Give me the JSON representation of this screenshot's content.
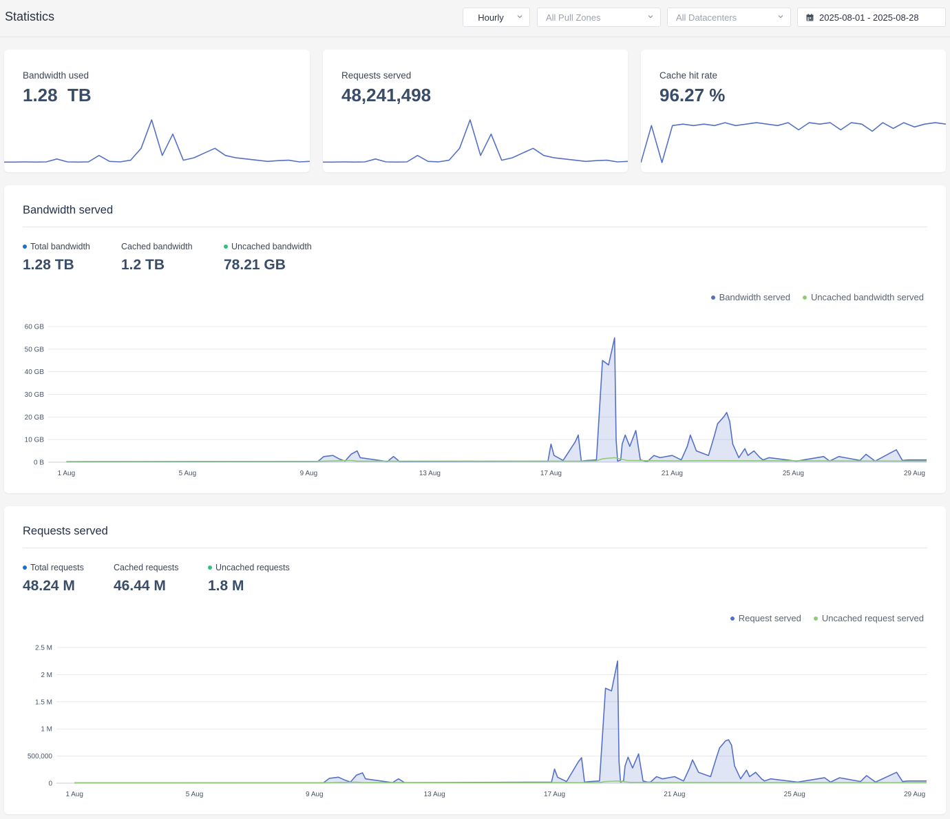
{
  "header": {
    "title": "Statistics",
    "granularity": "Hourly",
    "pull_zones": "All Pull Zones",
    "datacenters": "All Datacenters",
    "date_range": "2025-08-01 - 2025-08-28"
  },
  "kpis": [
    {
      "label": "Bandwidth used",
      "value": "1.28  TB"
    },
    {
      "label": "Requests served",
      "value": "48,241,498"
    },
    {
      "label": "Cache hit rate",
      "value": "96.27 %"
    }
  ],
  "bandwidth": {
    "title": "Bandwidth served",
    "stats": [
      {
        "label": "Total bandwidth",
        "value": "1.28 TB",
        "dot": "#1f6fc5"
      },
      {
        "label": "Cached bandwidth",
        "value": "1.2 TB",
        "dot": ""
      },
      {
        "label": "Uncached bandwidth",
        "value": "78.21 GB",
        "dot": "#2ec27e"
      }
    ],
    "legend": [
      {
        "label": "Bandwidth served",
        "color": "#5470c6"
      },
      {
        "label": "Uncached bandwidth served",
        "color": "#91cc75"
      }
    ]
  },
  "requests": {
    "title": "Requests served",
    "stats": [
      {
        "label": "Total requests",
        "value": "48.24 M",
        "dot": "#1f6fc5"
      },
      {
        "label": "Cached requests",
        "value": "46.44 M",
        "dot": ""
      },
      {
        "label": "Uncached requests",
        "value": "1.8 M",
        "dot": "#2ec27e"
      }
    ],
    "legend": [
      {
        "label": "Request served",
        "color": "#5470c6"
      },
      {
        "label": "Uncached request served",
        "color": "#91cc75"
      }
    ]
  },
  "colors": {
    "series_main": "#5470c6",
    "series_uncached": "#91cc75",
    "fill_main": "rgba(84,112,198,0.18)"
  },
  "chart_data": [
    {
      "type": "area",
      "title": "Bandwidth served",
      "x_start": "2025-08-01",
      "x_unit": "day",
      "x_ticks": [
        "1 Aug",
        "5 Aug",
        "9 Aug",
        "13 Aug",
        "17 Aug",
        "21 Aug",
        "25 Aug",
        "29 Aug"
      ],
      "y_ticks": [
        "0 B",
        "10 GB",
        "20 GB",
        "30 GB",
        "40 GB",
        "50 GB",
        "60 GB"
      ],
      "ylim": [
        0,
        60
      ],
      "y_unit": "GB",
      "series": [
        {
          "name": "Bandwidth served",
          "x": [
            0,
            8.3,
            8.5,
            8.8,
            9.0,
            9.2,
            9.4,
            9.6,
            9.7,
            10.6,
            10.8,
            11.0,
            15.9,
            16.0,
            16.1,
            16.4,
            16.8,
            16.9,
            17.0,
            17.2,
            17.5,
            17.7,
            17.9,
            18.1,
            18.15,
            18.2,
            18.3,
            18.35,
            18.45,
            18.6,
            18.8,
            18.95,
            19.1,
            19.2,
            19.4,
            19.6,
            20.0,
            20.3,
            20.5,
            20.6,
            20.8,
            21.2,
            21.4,
            21.5,
            21.7,
            21.8,
            21.9,
            22.0,
            22.2,
            22.4,
            22.5,
            22.7,
            22.9,
            23.0,
            23.2,
            23.5,
            24.1,
            25.0,
            25.2,
            25.5,
            25.7,
            26.2,
            26.4,
            26.7,
            27.4,
            27.6,
            27.8,
            28.4
          ],
          "values": [
            0.2,
            0.3,
            2.5,
            3.0,
            1.5,
            0.5,
            3.5,
            5.0,
            2.0,
            0.3,
            2.5,
            0.3,
            0.5,
            8.0,
            3.0,
            0.8,
            9.0,
            12.0,
            0.5,
            0.8,
            1.0,
            45.0,
            43.0,
            55.0,
            10.0,
            0.5,
            1.0,
            8.0,
            12.0,
            7.0,
            14.0,
            1.0,
            0.5,
            0.5,
            3.0,
            2.0,
            3.0,
            1.0,
            7.0,
            12.0,
            5.0,
            3.0,
            12.0,
            17.0,
            20.0,
            22.0,
            18.0,
            8.0,
            2.0,
            6.0,
            3.0,
            5.0,
            2.0,
            1.0,
            2.0,
            1.5,
            0.5,
            2.5,
            0.5,
            2.5,
            2.0,
            0.8,
            3.5,
            0.5,
            5.5,
            0.8,
            1.0,
            1.0
          ]
        },
        {
          "name": "Uncached bandwidth served",
          "x": [
            0,
            8.3,
            9.4,
            9.6,
            17.2,
            17.5,
            17.7,
            18.1,
            18.5,
            20.0,
            21.0,
            28.4
          ],
          "values": [
            0.3,
            0.4,
            0.8,
            0.5,
            0.5,
            0.6,
            1.5,
            2.0,
            0.8,
            0.6,
            0.7,
            0.5
          ]
        }
      ]
    },
    {
      "type": "area",
      "title": "Requests served",
      "x_start": "2025-08-01",
      "x_unit": "day",
      "x_ticks": [
        "1 Aug",
        "5 Aug",
        "9 Aug",
        "13 Aug",
        "17 Aug",
        "21 Aug",
        "25 Aug",
        "29 Aug"
      ],
      "y_ticks": [
        "0",
        "500,000",
        "1 M",
        "1.5 M",
        "2 M",
        "2.5 M"
      ],
      "ylim": [
        0,
        2500000
      ],
      "series": [
        {
          "name": "Request served",
          "x": [
            0,
            8.3,
            8.5,
            8.8,
            9.0,
            9.2,
            9.4,
            9.6,
            9.7,
            10.6,
            10.8,
            11.0,
            15.9,
            16.0,
            16.1,
            16.4,
            16.8,
            16.9,
            17.0,
            17.2,
            17.5,
            17.7,
            17.9,
            18.1,
            18.15,
            18.2,
            18.3,
            18.35,
            18.45,
            18.6,
            18.8,
            18.95,
            19.1,
            19.2,
            19.4,
            19.6,
            20.0,
            20.3,
            20.5,
            20.6,
            20.8,
            21.2,
            21.4,
            21.5,
            21.7,
            21.8,
            21.9,
            22.0,
            22.2,
            22.4,
            22.5,
            22.7,
            22.9,
            23.0,
            23.2,
            23.5,
            24.1,
            25.0,
            25.2,
            25.5,
            25.7,
            26.2,
            26.4,
            26.7,
            27.4,
            27.6,
            27.8,
            28.4
          ],
          "values": [
            5000,
            8000,
            90000,
            110000,
            60000,
            20000,
            150000,
            190000,
            80000,
            10000,
            80000,
            10000,
            20000,
            260000,
            110000,
            30000,
            400000,
            470000,
            20000,
            30000,
            40000,
            1750000,
            1700000,
            2250000,
            400000,
            20000,
            40000,
            320000,
            480000,
            280000,
            540000,
            40000,
            20000,
            20000,
            120000,
            80000,
            120000,
            40000,
            280000,
            430000,
            200000,
            120000,
            480000,
            650000,
            780000,
            800000,
            700000,
            320000,
            80000,
            240000,
            120000,
            200000,
            80000,
            40000,
            80000,
            60000,
            20000,
            100000,
            20000,
            100000,
            80000,
            30000,
            140000,
            20000,
            200000,
            30000,
            40000,
            40000
          ]
        },
        {
          "name": "Uncached request served",
          "x": [
            0,
            8.3,
            9.4,
            9.6,
            17.2,
            17.5,
            17.7,
            18.1,
            18.5,
            20.0,
            21.0,
            28.4
          ],
          "values": [
            5000,
            8000,
            20000,
            10000,
            10000,
            12000,
            30000,
            40000,
            16000,
            12000,
            14000,
            10000
          ]
        }
      ]
    },
    {
      "type": "line",
      "title": "Bandwidth used",
      "series": [
        {
          "name": "",
          "values": [
            0.2,
            0.2,
            0.3,
            0.2,
            0.3,
            1.5,
            0.3,
            0.2,
            0.3,
            3.0,
            0.5,
            0.3,
            1.0,
            6.0,
            18.0,
            3.0,
            12.0,
            1.0,
            2.0,
            4.0,
            6.0,
            3.0,
            2.0,
            1.5,
            1.0,
            0.5,
            0.8,
            1.0,
            0.3,
            0.5
          ]
        }
      ]
    },
    {
      "type": "line",
      "title": "Requests served",
      "series": [
        {
          "name": "",
          "values": [
            0.2,
            0.2,
            0.3,
            0.2,
            0.3,
            1.5,
            0.3,
            0.2,
            0.3,
            3.0,
            0.5,
            0.3,
            1.0,
            6.0,
            18.0,
            3.0,
            12.0,
            1.0,
            2.0,
            4.0,
            6.0,
            3.0,
            2.0,
            1.5,
            1.0,
            0.5,
            0.8,
            1.0,
            0.3,
            0.5
          ]
        }
      ]
    },
    {
      "type": "line",
      "title": "Cache hit rate",
      "series": [
        {
          "name": "",
          "values": [
            70,
            96,
            70,
            96,
            97,
            96,
            97,
            96,
            98,
            96,
            97,
            98,
            97,
            96,
            98,
            93,
            98,
            97,
            98,
            93,
            98,
            97,
            92,
            98,
            94,
            98,
            95,
            97,
            98,
            97
          ]
        }
      ]
    }
  ]
}
